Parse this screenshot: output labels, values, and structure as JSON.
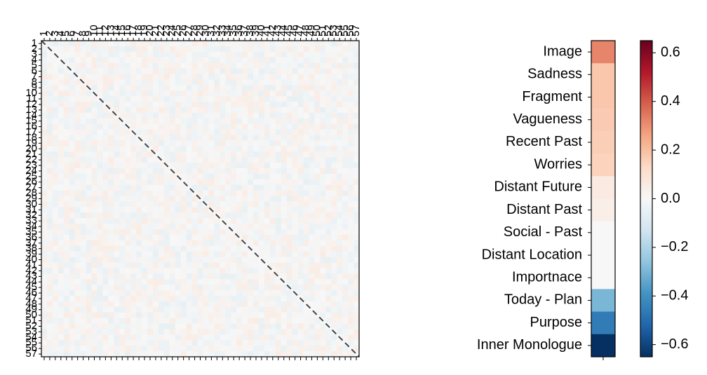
{
  "chart_data": [
    {
      "type": "heatmap",
      "title": "",
      "size": 57,
      "x_tick_labels": [
        "1",
        "2",
        "3",
        "4",
        "5",
        "6",
        "7",
        "8",
        "9",
        "10",
        "11",
        "12",
        "13",
        "14",
        "15",
        "16",
        "17",
        "18",
        "19",
        "20",
        "21",
        "22",
        "23",
        "24",
        "25",
        "26",
        "27",
        "28",
        "29",
        "30",
        "31",
        "32",
        "33",
        "34",
        "35",
        "36",
        "37",
        "38",
        "39",
        "40",
        "41",
        "42",
        "43",
        "44",
        "45",
        "46",
        "47",
        "48",
        "49",
        "50",
        "51",
        "52",
        "53",
        "54",
        "55",
        "56",
        "57"
      ],
      "y_tick_labels": [
        "1",
        "2",
        "3",
        "4",
        "5",
        "6",
        "7",
        "8",
        "9",
        "10",
        "11",
        "12",
        "13",
        "14",
        "15",
        "16",
        "17",
        "18",
        "19",
        "20",
        "21",
        "22",
        "23",
        "24",
        "25",
        "26",
        "27",
        "28",
        "29",
        "30",
        "31",
        "32",
        "33",
        "34",
        "35",
        "36",
        "37",
        "38",
        "39",
        "40",
        "41",
        "42",
        "43",
        "44",
        "45",
        "46",
        "47",
        "48",
        "49",
        "50",
        "51",
        "52",
        "53",
        "54",
        "55",
        "56",
        "57"
      ],
      "value_range": [
        -0.05,
        0.05
      ],
      "diagonal_line": "dashed",
      "colormap": "RdBu_r",
      "note_values": "near-zero correlations between 57 items; mostly white with faint red/blue tints"
    },
    {
      "type": "heatmap",
      "categories": [
        "Image",
        "Sadness",
        "Fragment",
        "Vagueness",
        "Recent Past",
        "Worries",
        "Distant Future",
        "Distant Past",
        "Social - Past",
        "Distant Location",
        "Importnace",
        "Today - Plan",
        "Purpose",
        "Inner Monologue"
      ],
      "values": [
        0.32,
        0.18,
        0.18,
        0.17,
        0.16,
        0.15,
        0.06,
        0.04,
        0.0,
        0.0,
        0.0,
        -0.3,
        -0.46,
        -0.65
      ]
    },
    {
      "type": "colorbar",
      "range": [
        -0.65,
        0.65
      ],
      "ticks": [
        -0.6,
        -0.4,
        -0.2,
        0.0,
        0.2,
        0.4,
        0.6
      ],
      "tick_labels": [
        "−0.6",
        "−0.4",
        "−0.2",
        "0.0",
        "0.2",
        "0.4",
        "0.6"
      ],
      "colormap": "RdBu_r"
    }
  ]
}
